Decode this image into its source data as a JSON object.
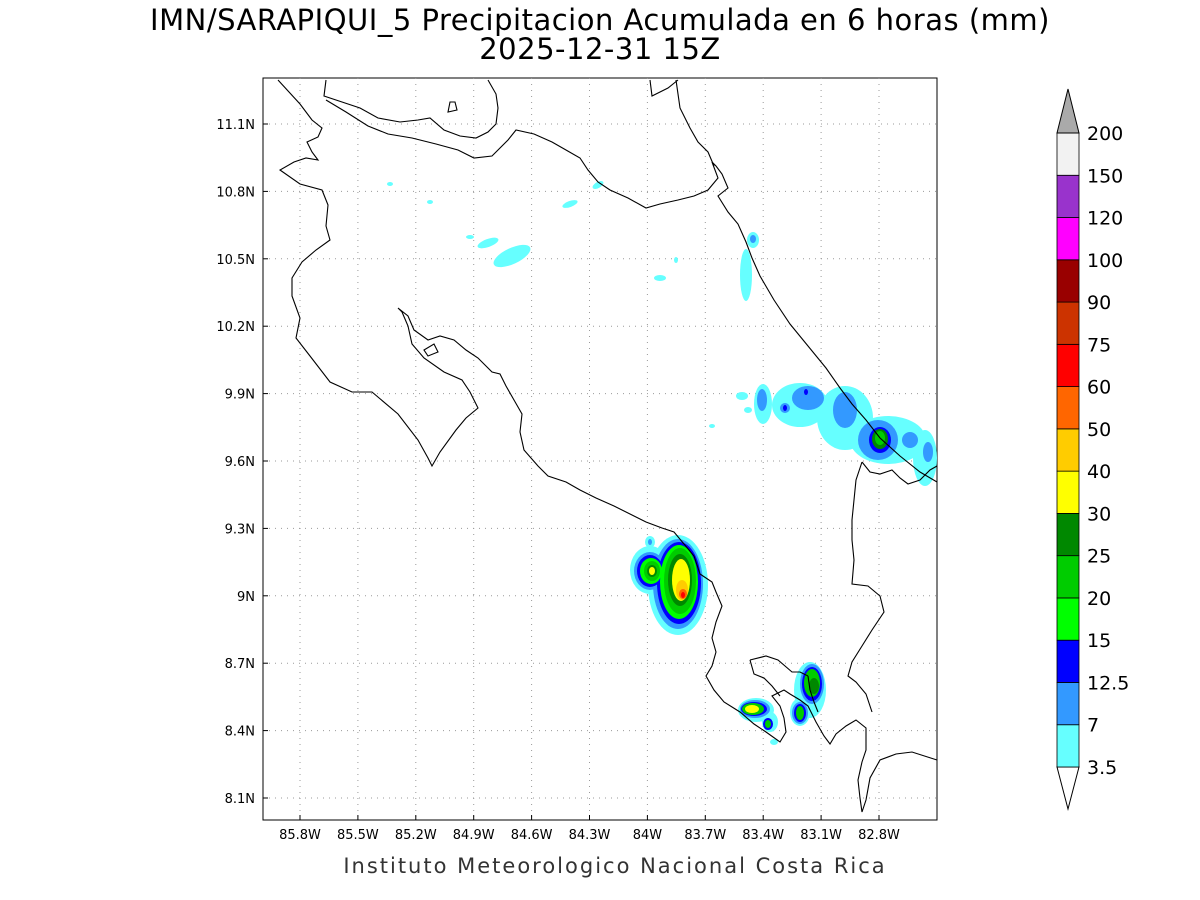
{
  "header": {
    "title_line1": "IMN/SARAPIQUI_5 Precipitacion Acumulada en 6 horas (mm)",
    "title_line2": "2025-12-31 15Z"
  },
  "footer": {
    "credit": "Instituto Meteorologico Nacional Costa Rica"
  },
  "map": {
    "lon_ticks": [
      "85.8W",
      "85.5W",
      "85.2W",
      "84.9W",
      "84.6W",
      "84.3W",
      "84W",
      "83.7W",
      "83.4W",
      "83.1W",
      "82.8W"
    ],
    "lat_ticks": [
      "11.1N",
      "10.8N",
      "10.5N",
      "10.2N",
      "9.9N",
      "9.6N",
      "9.3N",
      "9N",
      "8.7N",
      "8.4N",
      "8.1N"
    ],
    "grid": "dotted"
  },
  "colorbar": {
    "levels": [
      {
        "label": "3.5",
        "color": "#66ffff"
      },
      {
        "label": "7",
        "color": "#3399ff"
      },
      {
        "label": "12.5",
        "color": "#0000ff"
      },
      {
        "label": "15",
        "color": "#00ff00"
      },
      {
        "label": "20",
        "color": "#00cc00"
      },
      {
        "label": "25",
        "color": "#008800"
      },
      {
        "label": "30",
        "color": "#ffff00"
      },
      {
        "label": "40",
        "color": "#ffcc00"
      },
      {
        "label": "50",
        "color": "#ff6600"
      },
      {
        "label": "60",
        "color": "#ff0000"
      },
      {
        "label": "75",
        "color": "#cc3300"
      },
      {
        "label": "90",
        "color": "#990000"
      },
      {
        "label": "100",
        "color": "#ff00ff"
      },
      {
        "label": "120",
        "color": "#9933cc"
      },
      {
        "label": "150",
        "color": "#f2f2f2"
      },
      {
        "label": "200",
        "color": "#aaaaaa"
      }
    ]
  }
}
